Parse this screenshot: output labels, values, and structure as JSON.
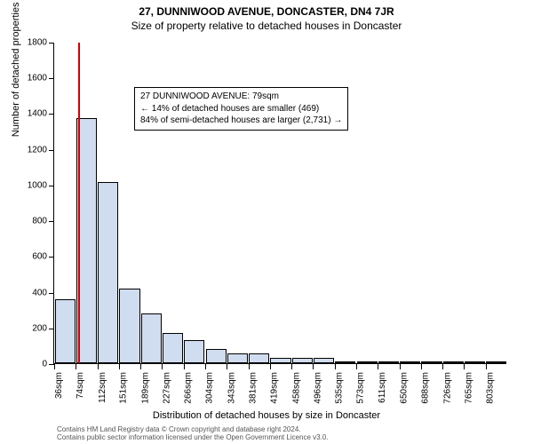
{
  "title_main": "27, DUNNIWOOD AVENUE, DONCASTER, DN4 7JR",
  "title_sub": "Size of property relative to detached houses in Doncaster",
  "y_axis": {
    "title": "Number of detached properties",
    "ticks": [
      0,
      200,
      400,
      600,
      800,
      1000,
      1200,
      1400,
      1600,
      1800
    ],
    "max": 1800,
    "label_fontsize": 10,
    "title_fontsize": 11
  },
  "x_axis": {
    "title": "Distribution of detached houses by size in Doncaster",
    "tick_labels": [
      "36sqm",
      "74sqm",
      "112sqm",
      "151sqm",
      "189sqm",
      "227sqm",
      "266sqm",
      "304sqm",
      "343sqm",
      "381sqm",
      "419sqm",
      "458sqm",
      "496sqm",
      "535sqm",
      "573sqm",
      "611sqm",
      "650sqm",
      "688sqm",
      "726sqm",
      "765sqm",
      "803sqm"
    ],
    "label_fontsize": 10,
    "title_fontsize": 11
  },
  "bars": {
    "values": [
      360,
      1370,
      1015,
      420,
      280,
      170,
      130,
      80,
      55,
      55,
      30,
      30,
      30,
      10,
      10,
      8,
      3,
      2,
      2,
      2,
      2
    ],
    "fill_color": "#d0dcef",
    "border_color": "#000000",
    "bar_width_ratio": 0.95
  },
  "marker_line": {
    "position_sqm": 79,
    "xmin_sqm": 36,
    "xstep_sqm": 38.35,
    "color": "#d00000"
  },
  "info_box": {
    "line1": "27 DUNNIWOOD AVENUE: 79sqm",
    "line2": "← 14% of detached houses are smaller (469)",
    "line3": "84% of semi-detached houses are larger (2,731) →",
    "border_color": "#000000",
    "background": "#ffffff",
    "fontsize": 10
  },
  "attribution": {
    "line1": "Contains HM Land Registry data © Crown copyright and database right 2024.",
    "line2": "Contains public sector information licensed under the Open Government Licence v3.0.",
    "color": "#555555",
    "fontsize": 8
  },
  "chart": {
    "background_color": "#ffffff",
    "axis_color": "#000000"
  }
}
